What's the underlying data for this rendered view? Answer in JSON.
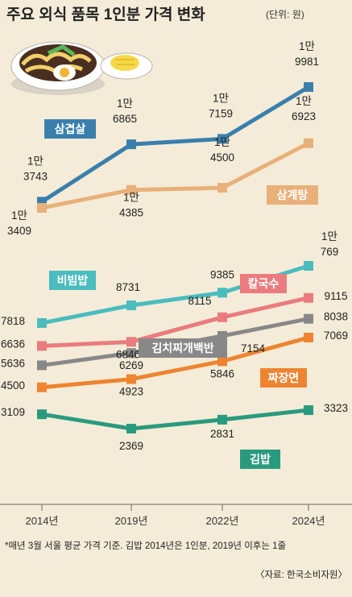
{
  "title": "주요 외식 품목 1인분 가격 변화",
  "unit": "(단위: 원)",
  "footnote": "*매년 3월 서울 평균 가격 기준. 김밥 2014년은 1인분, 2019년 이후는 1줄",
  "source": "〈자료: 한국소비자원〉",
  "chart_data": {
    "type": "line",
    "x": [
      "2014년",
      "2019년",
      "2022년",
      "2024년"
    ],
    "series": [
      {
        "name": "삼겹살",
        "color": "#3a7fac",
        "values": [
          13743,
          16865,
          17159,
          19981
        ],
        "labels": [
          [
            "1만",
            "3743"
          ],
          [
            "1만",
            "6865"
          ],
          [
            "1만",
            "7159"
          ],
          [
            "1만",
            "9981"
          ]
        ]
      },
      {
        "name": "삼계탕",
        "color": "#e8b07a",
        "values": [
          13409,
          14385,
          14500,
          16923
        ],
        "labels": [
          [
            "1만",
            "3409"
          ],
          [
            "1만",
            "4385"
          ],
          [
            "1만",
            "4500"
          ],
          [
            "1만",
            "6923"
          ]
        ]
      },
      {
        "name": "비빔밥",
        "color": "#4bbcbf",
        "values": [
          7818,
          8731,
          9385,
          10769
        ],
        "labels": [
          [
            "7818"
          ],
          [
            "8731"
          ],
          [
            "9385"
          ],
          [
            "1만",
            "769"
          ]
        ]
      },
      {
        "name": "칼국수",
        "color": "#ea7b7e",
        "values": [
          6636,
          6846,
          8115,
          9115
        ],
        "labels": [
          [
            "6636"
          ],
          [
            "6846"
          ],
          [
            "8115"
          ],
          [
            "9115"
          ]
        ]
      },
      {
        "name": "김치찌개백반",
        "color": "#888888",
        "values": [
          5636,
          6269,
          7154,
          8038
        ],
        "labels": [
          [
            "5636"
          ],
          [
            "6269"
          ],
          [
            "7154"
          ],
          [
            "8038"
          ]
        ]
      },
      {
        "name": "짜장면",
        "color": "#ee8431",
        "values": [
          4500,
          4923,
          5846,
          7069
        ],
        "labels": [
          [
            "4500"
          ],
          [
            "4923"
          ],
          [
            "5846"
          ],
          [
            "7069"
          ]
        ]
      },
      {
        "name": "김밥",
        "color": "#2a9a7e",
        "values": [
          3109,
          2369,
          2831,
          3323
        ],
        "labels": [
          [
            "3109"
          ],
          [
            "2369"
          ],
          [
            "2831"
          ],
          [
            "3323"
          ]
        ]
      }
    ]
  }
}
